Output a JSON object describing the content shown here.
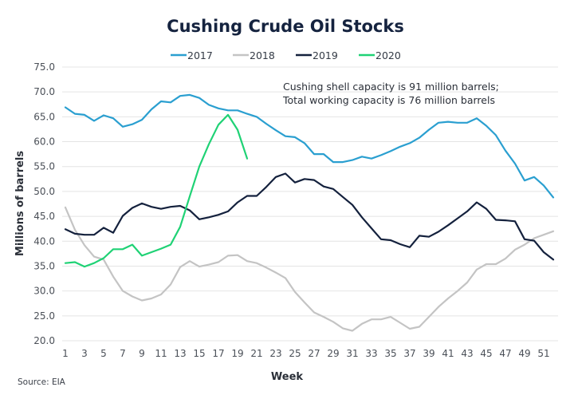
{
  "chart_data": {
    "type": "line",
    "title": "Cushing Crude Oil Stocks",
    "xlabel": "Week",
    "ylabel": "Millions of barrels",
    "source": "Source: EIA",
    "annotation": [
      "Cushing shell capacity is 91 million barrels;",
      "Total working capacity is 76 million barrels"
    ],
    "ylim": [
      20,
      75
    ],
    "y_ticks": [
      "20.0",
      "25.0",
      "30.0",
      "35.0",
      "40.0",
      "45.0",
      "50.0",
      "55.0",
      "60.0",
      "65.0",
      "70.0",
      "75.0"
    ],
    "xlim": [
      1,
      52
    ],
    "x_ticks": [
      "1",
      "3",
      "5",
      "7",
      "9",
      "11",
      "13",
      "15",
      "17",
      "19",
      "21",
      "23",
      "25",
      "27",
      "29",
      "31",
      "33",
      "35",
      "37",
      "39",
      "41",
      "43",
      "45",
      "47",
      "49",
      "51"
    ],
    "grid": true,
    "legend_position": "top",
    "series": [
      {
        "name": "2017",
        "color": "#2a9fd0",
        "weeks": [
          1,
          2,
          3,
          4,
          5,
          6,
          7,
          8,
          9,
          10,
          11,
          12,
          13,
          14,
          15,
          16,
          17,
          18,
          19,
          20,
          21,
          22,
          23,
          24,
          25,
          26,
          27,
          28,
          29,
          30,
          31,
          32,
          33,
          34,
          35,
          36,
          37,
          38,
          39,
          40,
          41,
          42,
          43,
          44,
          45,
          46,
          47,
          48,
          49,
          50,
          51,
          52
        ],
        "values": [
          66.9,
          65.6,
          65.4,
          64.2,
          65.3,
          64.7,
          63.0,
          63.5,
          64.4,
          66.5,
          68.1,
          67.9,
          69.2,
          69.4,
          68.8,
          67.4,
          66.7,
          66.3,
          66.3,
          65.6,
          65.0,
          63.6,
          62.3,
          61.1,
          60.9,
          59.7,
          57.5,
          57.5,
          55.9,
          55.9,
          56.3,
          57.0,
          56.6,
          57.3,
          58.1,
          59.0,
          59.7,
          60.8,
          62.4,
          63.8,
          64.0,
          63.8,
          63.8,
          64.7,
          63.2,
          61.3,
          58.2,
          55.6,
          52.2,
          52.9,
          51.2,
          48.8
        ]
      },
      {
        "name": "2018",
        "color": "#c4c4c4",
        "weeks": [
          1,
          2,
          3,
          4,
          5,
          6,
          7,
          8,
          9,
          10,
          11,
          12,
          13,
          14,
          15,
          16,
          17,
          18,
          19,
          20,
          21,
          22,
          23,
          24,
          25,
          26,
          27,
          28,
          29,
          30,
          31,
          32,
          33,
          34,
          35,
          36,
          37,
          38,
          39,
          40,
          41,
          42,
          43,
          44,
          45,
          46,
          47,
          48,
          49,
          50,
          51,
          52
        ],
        "values": [
          46.8,
          42.3,
          39.2,
          36.9,
          36.3,
          32.9,
          30.0,
          28.9,
          28.1,
          28.5,
          29.3,
          31.3,
          34.8,
          36.0,
          34.9,
          35.3,
          35.8,
          37.1,
          37.2,
          36.0,
          35.6,
          34.7,
          33.7,
          32.6,
          29.8,
          27.7,
          25.7,
          24.8,
          23.8,
          22.5,
          22.0,
          23.4,
          24.3,
          24.3,
          24.8,
          23.6,
          22.4,
          22.8,
          24.8,
          26.8,
          28.5,
          30.0,
          31.7,
          34.3,
          35.4,
          35.4,
          36.5,
          38.3,
          39.3,
          40.6,
          41.3,
          42.0
        ]
      },
      {
        "name": "2019",
        "color": "#14213d",
        "weeks": [
          1,
          2,
          3,
          4,
          5,
          6,
          7,
          8,
          9,
          10,
          11,
          12,
          13,
          14,
          15,
          16,
          17,
          18,
          19,
          20,
          21,
          22,
          23,
          24,
          25,
          26,
          27,
          28,
          29,
          30,
          31,
          32,
          33,
          34,
          35,
          36,
          37,
          38,
          39,
          40,
          41,
          42,
          43,
          44,
          45,
          46,
          47,
          48,
          49,
          50,
          51,
          52
        ],
        "values": [
          42.4,
          41.5,
          41.3,
          41.3,
          42.7,
          41.7,
          45.1,
          46.7,
          47.6,
          46.9,
          46.5,
          46.9,
          47.1,
          46.2,
          44.4,
          44.8,
          45.3,
          46.0,
          47.8,
          49.1,
          49.1,
          50.9,
          52.9,
          53.6,
          51.8,
          52.5,
          52.3,
          51.0,
          50.5,
          48.9,
          47.3,
          44.8,
          42.6,
          40.4,
          40.2,
          39.4,
          38.8,
          41.1,
          40.9,
          41.9,
          43.2,
          44.6,
          46.0,
          47.8,
          46.5,
          44.3,
          44.2,
          44.0,
          40.4,
          40.1,
          37.8,
          36.3
        ]
      },
      {
        "name": "2020",
        "color": "#1fd275",
        "weeks": [
          1,
          2,
          3,
          4,
          5,
          6,
          7,
          8,
          9,
          10,
          11,
          12,
          13,
          14,
          15,
          16,
          17,
          18,
          19,
          20
        ],
        "values": [
          35.6,
          35.8,
          34.9,
          35.6,
          36.6,
          38.4,
          38.4,
          39.3,
          37.1,
          37.8,
          38.5,
          39.3,
          42.9,
          49.0,
          55.0,
          59.5,
          63.4,
          65.4,
          62.4,
          56.6
        ]
      }
    ]
  }
}
